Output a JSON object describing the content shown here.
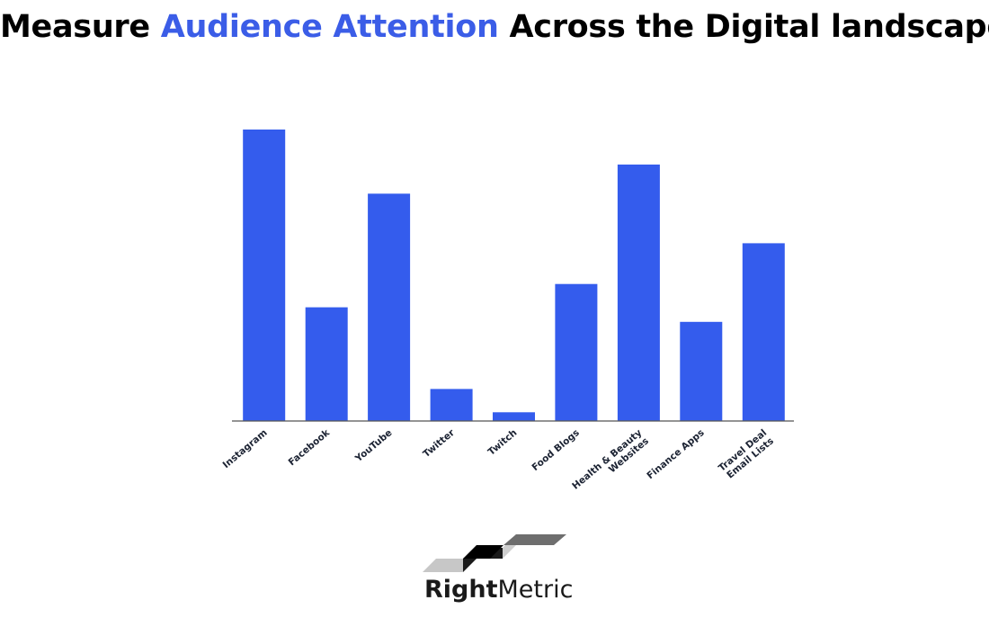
{
  "headline": {
    "part1": "Measure ",
    "highlight": "Audience Attention",
    "part2": " Across the Digital landscape.",
    "highlight_color": "#3b5de7"
  },
  "chart_data": {
    "type": "bar",
    "title": "Measure Audience Attention Across the Digital landscape.",
    "xlabel": "",
    "ylabel": "",
    "categories": [
      "Instagram",
      "Facebook",
      "YouTube",
      "Twitter",
      "Twitch",
      "Food Blogs",
      "Health & Beauty Websites",
      "Finance Apps",
      "Travel Deal Email Lists"
    ],
    "category_lines": [
      [
        "Instagram"
      ],
      [
        "Facebook"
      ],
      [
        "YouTube"
      ],
      [
        "Twitter"
      ],
      [
        "Twitch"
      ],
      [
        "Food Blogs"
      ],
      [
        "Health & Beauty",
        "Websites"
      ],
      [
        "Finance Apps"
      ],
      [
        "Travel Deal",
        "Email Lists"
      ]
    ],
    "values": [
      100,
      39,
      78,
      11,
      3,
      47,
      88,
      34,
      61
    ],
    "ylim": [
      0,
      100
    ],
    "grid": false,
    "bar_color": "#345ced",
    "axis_color": "#555555"
  },
  "logo": {
    "brand_bold": "Right",
    "brand_light": "Metric"
  }
}
